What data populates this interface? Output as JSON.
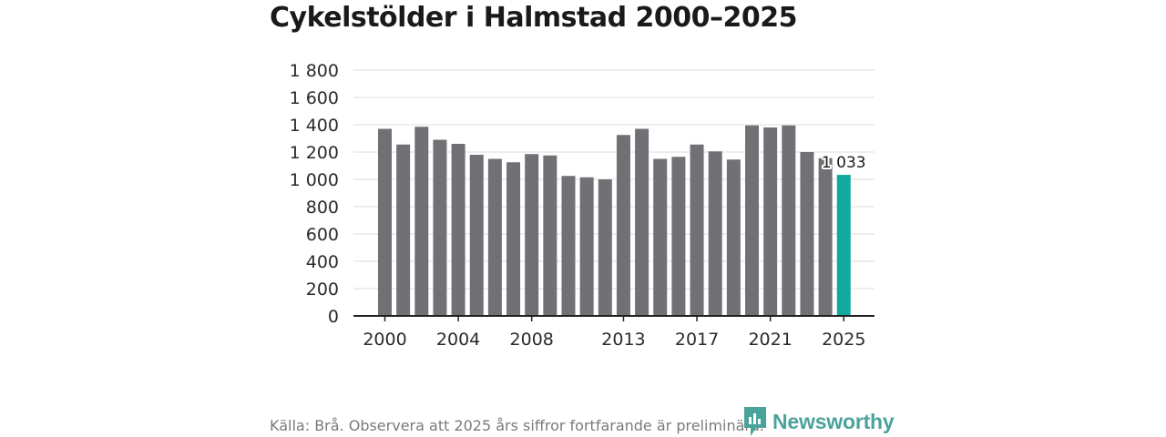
{
  "chart_data": {
    "type": "bar",
    "title": "Cykelstölder i Halmstad 2000–2025",
    "xlabel": "",
    "ylabel": "",
    "ylim": [
      0,
      1800
    ],
    "yticks": [
      0,
      200,
      400,
      600,
      800,
      1000,
      1200,
      1400,
      1600,
      1800
    ],
    "ytick_labels": [
      "0",
      "200",
      "400",
      "600",
      "800",
      "1 000",
      "1 200",
      "1 400",
      "1 600",
      "1 800"
    ],
    "categories": [
      2000,
      2001,
      2002,
      2003,
      2004,
      2005,
      2006,
      2007,
      2008,
      2009,
      2010,
      2011,
      2012,
      2013,
      2014,
      2015,
      2016,
      2017,
      2018,
      2019,
      2020,
      2021,
      2022,
      2023,
      2024,
      2025
    ],
    "values": [
      1370,
      1255,
      1385,
      1290,
      1260,
      1180,
      1150,
      1125,
      1185,
      1175,
      1025,
      1015,
      1000,
      1325,
      1370,
      1150,
      1165,
      1255,
      1205,
      1145,
      1395,
      1380,
      1395,
      1200,
      1155,
      1033
    ],
    "xtick_labels": [
      "2000",
      "2004",
      "2008",
      "2013",
      "2017",
      "2021",
      "2025"
    ],
    "highlight_index": 25,
    "highlight_label": "1 033",
    "grid": true,
    "colors": {
      "bar": "#717075",
      "highlight": "#13a89e",
      "grid": "#dcdcdc",
      "axis": "#222222",
      "text": "#2b2b2b"
    }
  },
  "footer": {
    "source": "Källa: Brå. Observera att 2025 års siffror fortfarande är preliminära.",
    "brand": "Newsworthy",
    "brand_color": "#4aa39a"
  }
}
